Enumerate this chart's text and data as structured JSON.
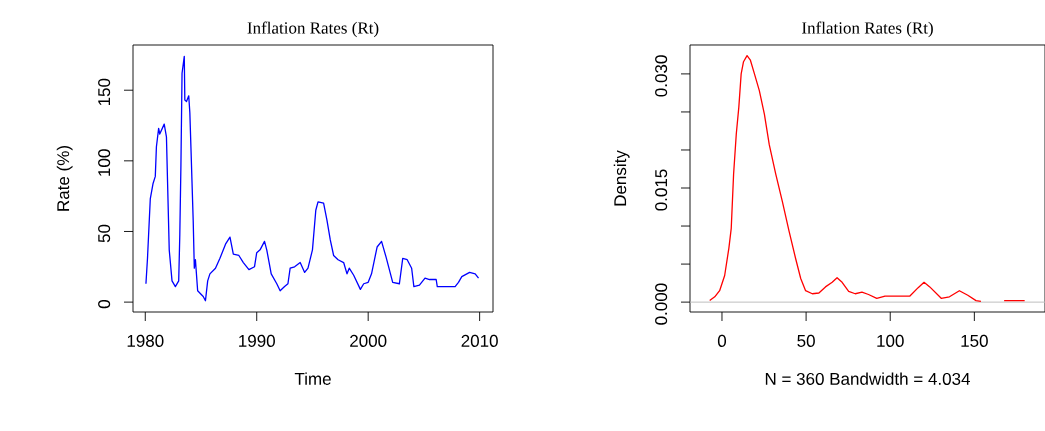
{
  "chart_data": [
    {
      "type": "line",
      "title": "Inflation Rates (Rt)",
      "xlabel": "Time",
      "ylabel": "Rate (%)",
      "color": "#0000ff",
      "marker": "none",
      "line_style": "solid",
      "grid": false,
      "x": [
        1980.06,
        1980.2,
        1980.45,
        1980.7,
        1980.9,
        1981.0,
        1981.2,
        1981.3,
        1981.7,
        1981.9,
        1982.0,
        1982.15,
        1982.4,
        1982.7,
        1983.0,
        1983.1,
        1983.2,
        1983.3,
        1983.5,
        1983.55,
        1983.7,
        1983.9,
        1984.0,
        1984.1,
        1984.3,
        1984.4,
        1984.5,
        1984.7,
        1985.2,
        1985.4,
        1985.6,
        1985.8,
        1986.3,
        1986.7,
        1987.2,
        1987.6,
        1987.9,
        1988.4,
        1988.8,
        1989.3,
        1989.8,
        1990.0,
        1990.3,
        1990.7,
        1990.9,
        1991.3,
        1991.8,
        1992.1,
        1992.5,
        1992.8,
        1993.0,
        1993.4,
        1993.9,
        1994.3,
        1994.6,
        1995.0,
        1995.3,
        1995.5,
        1996.0,
        1996.3,
        1996.6,
        1996.9,
        1997.3,
        1997.8,
        1998.1,
        1998.3,
        1998.7,
        1999.3,
        1999.6,
        2000.0,
        2000.3,
        2000.8,
        2001.2,
        2001.6,
        2002.2,
        2002.8,
        2003.1,
        2003.5,
        2003.9,
        2004.1,
        2004.6,
        2005.1,
        2005.5,
        2006.1,
        2006.2,
        2007.8,
        2008.1,
        2008.4,
        2009.1,
        2009.6,
        2009.9
      ],
      "values": [
        13,
        31,
        73,
        84,
        89,
        110,
        123,
        119,
        126,
        117,
        85,
        37,
        15,
        11,
        15,
        48,
        97,
        162,
        174,
        143,
        142,
        146,
        134,
        109,
        58,
        24,
        30,
        8,
        4,
        1,
        15,
        20,
        24,
        31,
        41,
        46,
        34,
        33,
        28,
        23,
        25,
        35,
        37,
        43,
        37,
        20,
        13,
        8,
        11,
        13,
        24,
        25,
        28,
        21,
        24,
        37,
        65,
        71,
        70,
        58,
        44,
        33,
        30,
        28,
        20,
        24,
        19,
        9,
        13,
        14,
        20,
        39,
        43,
        32,
        14,
        13,
        31,
        30,
        24,
        11,
        12,
        17,
        16,
        16,
        11,
        11,
        14,
        18,
        21,
        20,
        17
      ],
      "xlim": [
        1978.9,
        2011.2
      ],
      "xticks": [
        1980,
        1990,
        2000,
        2010
      ],
      "ylim": [
        -7,
        182
      ],
      "yticks": [
        0,
        50,
        100,
        150
      ]
    },
    {
      "type": "line",
      "title": "Inflation Rates (Rt)",
      "xlabel": "N = 360   Bandwidth = 4.034",
      "ylabel": "Density",
      "color": "#ff0000",
      "marker": "none",
      "line_style": "solid",
      "grid": false,
      "x": [
        -7.3,
        -4.3,
        -1.4,
        1.6,
        4.1,
        5.5,
        6.9,
        8.5,
        10.0,
        11.4,
        12.8,
        14.9,
        16.9,
        19.3,
        22.2,
        25.2,
        28.1,
        32.0,
        35.9,
        39.9,
        43.8,
        46.8,
        49.7,
        53.7,
        57.6,
        61.5,
        65.5,
        68.4,
        71.4,
        75.3,
        79.2,
        83.2,
        87.1,
        92.0,
        96.9,
        111.7,
        116.6,
        120.1,
        123.5,
        130.3,
        135.2,
        141.1,
        146.1,
        151.0,
        153.9,
        160.0,
        167.7,
        179.9
      ],
      "values": [
        0.0002,
        0.0007,
        0.0015,
        0.0035,
        0.0071,
        0.0097,
        0.0168,
        0.0221,
        0.0256,
        0.03,
        0.0316,
        0.0324,
        0.0318,
        0.03,
        0.0278,
        0.0247,
        0.0207,
        0.0168,
        0.0132,
        0.0093,
        0.0057,
        0.0031,
        0.0015,
        0.0011,
        0.0012,
        0.002,
        0.0026,
        0.0032,
        0.0026,
        0.0014,
        0.0011,
        0.0013,
        0.001,
        0.0005,
        0.0008,
        0.0008,
        0.0019,
        0.0026,
        0.002,
        0.0005,
        0.0007,
        0.0015,
        0.0009,
        0.0002,
        0.0001,
        null,
        0.0002,
        0.0002
      ],
      "xlim": [
        -19,
        192
      ],
      "xticks": [
        0,
        50,
        100,
        150
      ],
      "ylim": [
        -0.0013,
        0.0338
      ],
      "yticks": [
        {
          "value": 0,
          "label": "0.000"
        },
        {
          "value": 0.005,
          "label": null
        },
        {
          "value": 0.01,
          "label": null
        },
        {
          "value": 0.015,
          "label": "0.015"
        },
        {
          "value": 0.02,
          "label": null
        },
        {
          "value": 0.025,
          "label": null
        },
        {
          "value": 0.03,
          "label": "0.030"
        }
      ],
      "ref_lines": [
        {
          "axis": "y",
          "value": 0,
          "color": "#bebebe"
        }
      ]
    }
  ]
}
